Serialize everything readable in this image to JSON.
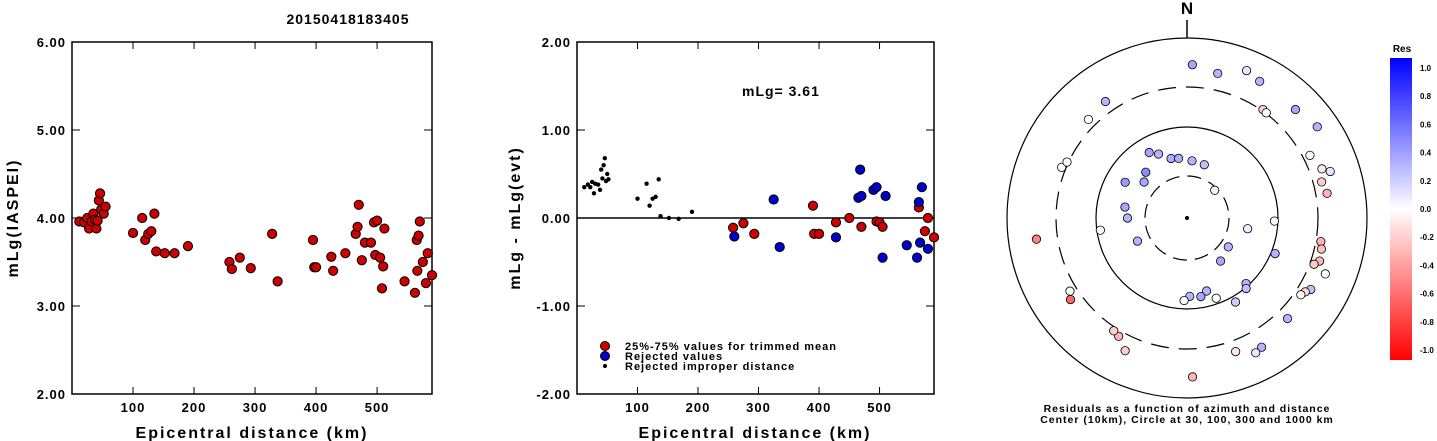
{
  "title": "20150418183405",
  "chart_data": [
    {
      "type": "scatter",
      "xlabel": "Epicentral distance (km)",
      "ylabel": "mLg(IASPEI)",
      "xlim": [
        0,
        590
      ],
      "ylim": [
        2.0,
        6.0
      ],
      "xticks": [
        "100",
        "200",
        "300",
        "400",
        "500"
      ],
      "yticks": [
        "2.00",
        "3.00",
        "4.00",
        "5.00",
        "6.00"
      ],
      "grid": false,
      "series": [
        {
          "color": "#cc0000",
          "points": [
            [
              12,
              3.96
            ],
            [
              20,
              3.95
            ],
            [
              25,
              4.0
            ],
            [
              28,
              3.88
            ],
            [
              32,
              3.96
            ],
            [
              35,
              4.05
            ],
            [
              38,
              3.98
            ],
            [
              40,
              3.88
            ],
            [
              42,
              3.97
            ],
            [
              44,
              4.2
            ],
            [
              46,
              4.28
            ],
            [
              48,
              4.1
            ],
            [
              52,
              4.05
            ],
            [
              55,
              4.13
            ],
            [
              100,
              3.83
            ],
            [
              115,
              4.0
            ],
            [
              120,
              3.75
            ],
            [
              125,
              3.82
            ],
            [
              130,
              3.85
            ],
            [
              135,
              4.05
            ],
            [
              138,
              3.62
            ],
            [
              152,
              3.6
            ],
            [
              168,
              3.6
            ],
            [
              190,
              3.68
            ],
            [
              258,
              3.5
            ],
            [
              262,
              3.42
            ],
            [
              275,
              3.55
            ],
            [
              293,
              3.43
            ],
            [
              328,
              3.82
            ],
            [
              337,
              3.28
            ],
            [
              395,
              3.75
            ],
            [
              397,
              3.44
            ],
            [
              400,
              3.44
            ],
            [
              425,
              3.56
            ],
            [
              428,
              3.4
            ],
            [
              448,
              3.6
            ],
            [
              465,
              3.82
            ],
            [
              468,
              3.9
            ],
            [
              470,
              4.15
            ],
            [
              475,
              3.52
            ],
            [
              480,
              3.72
            ],
            [
              490,
              3.72
            ],
            [
              495,
              3.95
            ],
            [
              497,
              3.58
            ],
            [
              500,
              3.97
            ],
            [
              505,
              3.55
            ],
            [
              508,
              3.2
            ],
            [
              510,
              3.45
            ],
            [
              512,
              3.88
            ],
            [
              545,
              3.28
            ],
            [
              562,
              3.15
            ],
            [
              565,
              3.75
            ],
            [
              566,
              3.4
            ],
            [
              568,
              3.8
            ],
            [
              570,
              3.96
            ],
            [
              575,
              3.5
            ],
            [
              580,
              3.26
            ],
            [
              583,
              3.6
            ],
            [
              590,
              3.35
            ]
          ]
        }
      ]
    },
    {
      "type": "scatter",
      "xlabel": "Epicentral distance (km)",
      "ylabel": "mLg - mLg(evt)",
      "xlim": [
        0,
        590
      ],
      "ylim": [
        -2.0,
        2.0
      ],
      "xticks": [
        "100",
        "200",
        "300",
        "400",
        "500"
      ],
      "yticks": [
        "-2.00",
        "-1.00",
        "0.00",
        "1.00",
        "2.00"
      ],
      "annotation": "mLg= 3.61",
      "reference_line": 0.0,
      "legend": [
        "25%-75% values for trimmed mean",
        "Rejected values",
        "Rejected improper distance"
      ],
      "series": [
        {
          "name": "25%-75% values for trimmed mean",
          "color": "#cc0000",
          "points": [
            [
              258,
              -0.11
            ],
            [
              275,
              -0.06
            ],
            [
              293,
              -0.18
            ],
            [
              390,
              0.14
            ],
            [
              392,
              -0.18
            ],
            [
              400,
              -0.18
            ],
            [
              428,
              -0.05
            ],
            [
              450,
              0.0
            ],
            [
              470,
              -0.1
            ],
            [
              495,
              -0.04
            ],
            [
              500,
              -0.05
            ],
            [
              505,
              -0.1
            ],
            [
              565,
              0.12
            ],
            [
              575,
              -0.15
            ],
            [
              580,
              0.0
            ],
            [
              590,
              -0.22
            ]
          ]
        },
        {
          "name": "Rejected values",
          "color": "#0000cc",
          "points": [
            [
              260,
              -0.21
            ],
            [
              325,
              0.21
            ],
            [
              335,
              -0.33
            ],
            [
              428,
              -0.22
            ],
            [
              465,
              0.23
            ],
            [
              468,
              0.55
            ],
            [
              470,
              0.25
            ],
            [
              490,
              0.32
            ],
            [
              495,
              0.35
            ],
            [
              505,
              -0.45
            ],
            [
              510,
              0.25
            ],
            [
              545,
              -0.31
            ],
            [
              562,
              -0.45
            ],
            [
              565,
              0.18
            ],
            [
              567,
              -0.28
            ],
            [
              570,
              0.35
            ],
            [
              580,
              -0.35
            ]
          ]
        },
        {
          "name": "Rejected improper distance",
          "color": "#000000",
          "points": [
            [
              12,
              0.35
            ],
            [
              18,
              0.38
            ],
            [
              22,
              0.35
            ],
            [
              25,
              0.41
            ],
            [
              28,
              0.28
            ],
            [
              30,
              0.39
            ],
            [
              35,
              0.38
            ],
            [
              38,
              0.32
            ],
            [
              40,
              0.55
            ],
            [
              42,
              0.45
            ],
            [
              44,
              0.6
            ],
            [
              46,
              0.68
            ],
            [
              48,
              0.42
            ],
            [
              50,
              0.5
            ],
            [
              52,
              0.44
            ],
            [
              100,
              0.22
            ],
            [
              115,
              0.39
            ],
            [
              120,
              0.14
            ],
            [
              125,
              0.22
            ],
            [
              130,
              0.24
            ],
            [
              135,
              0.44
            ],
            [
              138,
              0.02
            ],
            [
              152,
              0.0
            ],
            [
              168,
              -0.01
            ],
            [
              190,
              0.07
            ]
          ]
        }
      ]
    },
    {
      "type": "scatter",
      "subtype": "polar",
      "north_label": "N",
      "caption_lines": [
        "Residuals as a function of azimuth and distance",
        "Center (10km), Circle at 30, 100, 300 and 1000 km"
      ],
      "rings_km": [
        30,
        100,
        300,
        1000
      ],
      "colorbar": {
        "title": "Res",
        "ticks": [
          "1.0",
          "0.8",
          "0.6",
          "0.4",
          "0.2",
          "0.0",
          "-0.2",
          "-0.4",
          "-0.6",
          "-0.8",
          "-1.0"
        ],
        "range": [
          -1.0,
          1.0
        ]
      },
      "points": [
        {
          "az": 330,
          "dist_km": 78,
          "res": 0.35
        },
        {
          "az": 336,
          "dist_km": 70,
          "res": 0.3
        },
        {
          "az": 345,
          "dist_km": 58,
          "res": 0.32
        },
        {
          "az": 352,
          "dist_km": 56,
          "res": 0.33
        },
        {
          "az": 5,
          "dist_km": 52,
          "res": 0.3
        },
        {
          "az": 18,
          "dist_km": 50,
          "res": 0.25
        },
        {
          "az": 300,
          "dist_km": 72,
          "res": 0.4
        },
        {
          "az": 318,
          "dist_km": 58,
          "res": 0.45
        },
        {
          "az": 310,
          "dist_km": 50,
          "res": 0.35
        },
        {
          "az": 45,
          "dist_km": 28,
          "res": 0.05
        },
        {
          "az": 100,
          "dist_km": 58,
          "res": 0.08
        },
        {
          "az": 125,
          "dist_km": 42,
          "res": 0.3
        },
        {
          "az": 142,
          "dist_km": 48,
          "res": 0.35
        },
        {
          "az": 160,
          "dist_km": 92,
          "res": 0.0
        },
        {
          "az": 165,
          "dist_km": 78,
          "res": 0.3
        },
        {
          "az": 170,
          "dist_km": 84,
          "res": 0.35
        },
        {
          "az": 178,
          "dist_km": 82,
          "res": 0.3
        },
        {
          "az": 182,
          "dist_km": 88,
          "res": 0.0
        },
        {
          "az": 138,
          "dist_km": 96,
          "res": 0.3
        },
        {
          "az": 140,
          "dist_km": 105,
          "res": 0.25
        },
        {
          "az": 150,
          "dist_km": 130,
          "res": 0.2
        },
        {
          "az": 112,
          "dist_km": 120,
          "res": 0.3
        },
        {
          "az": 92,
          "dist_km": 95,
          "res": 0.0
        },
        {
          "az": 262,
          "dist_km": 95,
          "res": 0.0
        },
        {
          "az": 245,
          "dist_km": 48,
          "res": 0.3
        },
        {
          "az": 270,
          "dist_km": 55,
          "res": 0.3
        },
        {
          "az": 280,
          "dist_km": 60,
          "res": 0.35
        },
        {
          "az": 2,
          "dist_km": 620,
          "res": 0.35
        },
        {
          "az": 12,
          "dist_km": 540,
          "res": 0.3
        },
        {
          "az": 22,
          "dist_km": 700,
          "res": 0.1
        },
        {
          "az": 28,
          "dist_km": 640,
          "res": 0.3
        },
        {
          "az": 35,
          "dist_km": 320,
          "res": -0.2
        },
        {
          "az": 37,
          "dist_km": 310,
          "res": 0.0
        },
        {
          "az": 45,
          "dist_km": 620,
          "res": 0.35
        },
        {
          "az": 55,
          "dist_km": 700,
          "res": 0.3
        },
        {
          "az": 63,
          "dist_km": 400,
          "res": 0.0
        },
        {
          "az": 70,
          "dist_km": 480,
          "res": -0.1
        },
        {
          "az": 72,
          "dist_km": 580,
          "res": 0.1
        },
        {
          "az": 75,
          "dist_km": 420,
          "res": -0.2
        },
        {
          "az": 80,
          "dist_km": 460,
          "res": -0.3
        },
        {
          "az": 100,
          "dist_km": 370,
          "res": -0.3
        },
        {
          "az": 103,
          "dist_km": 400,
          "res": -0.25
        },
        {
          "az": 108,
          "dist_km": 420,
          "res": -0.3
        },
        {
          "az": 110,
          "dist_km": 360,
          "res": -0.2
        },
        {
          "az": 112,
          "dist_km": 560,
          "res": 0.0
        },
        {
          "az": 120,
          "dist_km": 470,
          "res": 0.25
        },
        {
          "az": 122,
          "dist_km": 420,
          "res": -0.15
        },
        {
          "az": 124,
          "dist_km": 390,
          "res": 0.0
        },
        {
          "az": 135,
          "dist_km": 460,
          "res": 0.3
        },
        {
          "az": 150,
          "dist_km": 560,
          "res": 0.3
        },
        {
          "az": 153,
          "dist_km": 590,
          "res": 0.1
        },
        {
          "az": 160,
          "dist_km": 460,
          "res": -0.1
        },
        {
          "az": 178,
          "dist_km": 700,
          "res": -0.3
        },
        {
          "az": 205,
          "dist_km": 520,
          "res": -0.2
        },
        {
          "az": 210,
          "dist_km": 380,
          "res": -0.3
        },
        {
          "az": 213,
          "dist_km": 350,
          "res": -0.2
        },
        {
          "az": 235,
          "dist_km": 460,
          "res": -0.6
        },
        {
          "az": 238,
          "dist_km": 400,
          "res": 0.0
        },
        {
          "az": 262,
          "dist_km": 600,
          "res": -0.5
        },
        {
          "az": 292,
          "dist_km": 360,
          "res": 0.0
        },
        {
          "az": 295,
          "dist_km": 320,
          "res": 0.0
        },
        {
          "az": 315,
          "dist_km": 420,
          "res": 0.0
        },
        {
          "az": 325,
          "dist_km": 460,
          "res": 0.3
        }
      ]
    }
  ]
}
